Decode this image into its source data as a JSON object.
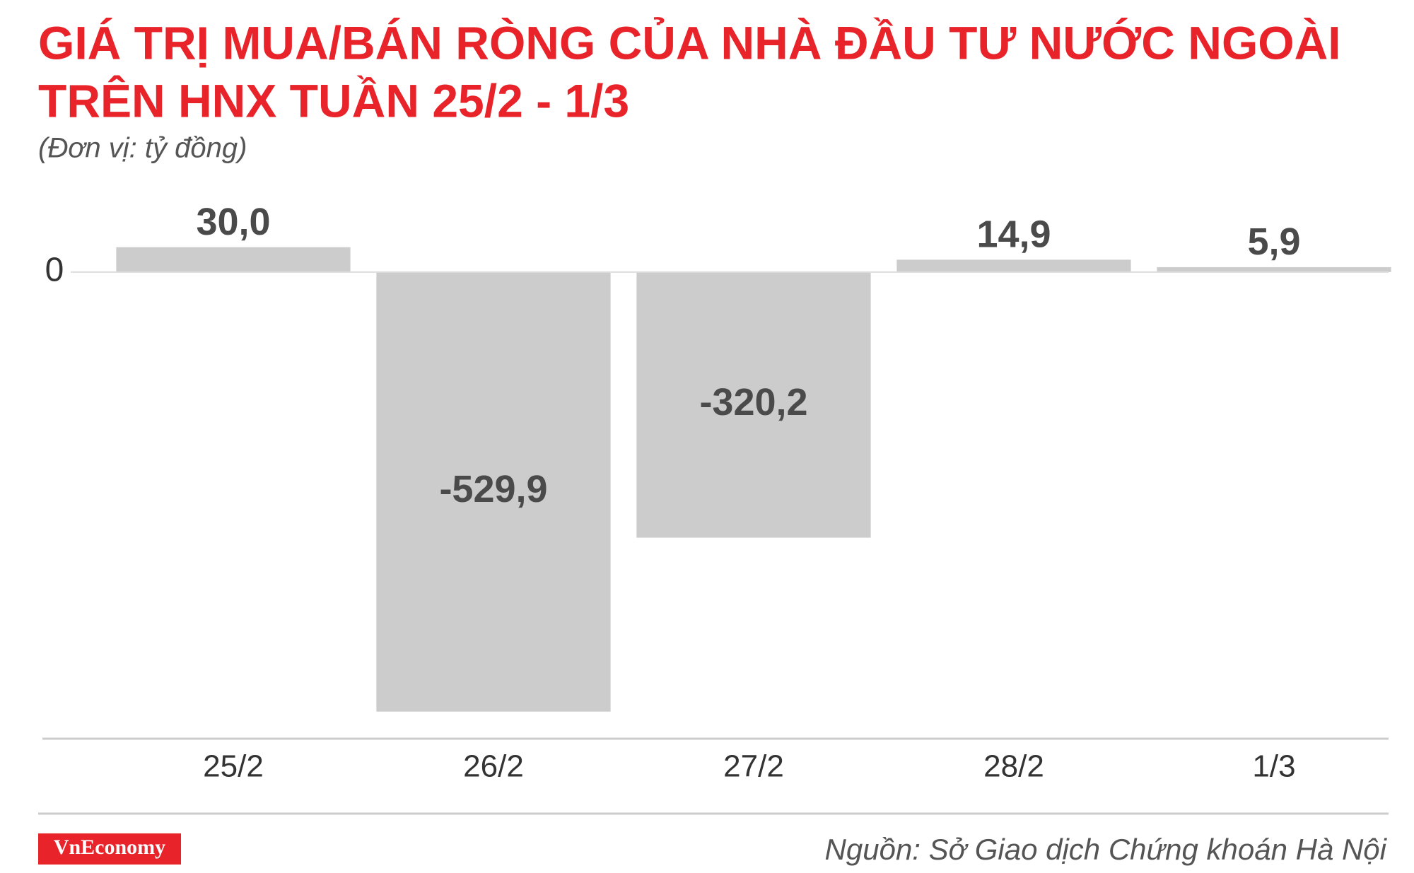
{
  "chart_data": {
    "type": "bar",
    "title": [
      "GIÁ TRỊ MUA/BÁN RÒNG CỦA NHÀ ĐẦU TƯ NƯỚC NGOÀI",
      "TRÊN HNX TUẦN 25/2 - 1/3"
    ],
    "subtitle": "(Đơn vị: tỷ đồng)",
    "categories": [
      "25/2",
      "26/2",
      "27/2",
      "28/2",
      "1/3"
    ],
    "values": [
      30.0,
      -529.9,
      -320.2,
      14.9,
      5.9
    ],
    "value_labels": [
      "30,0",
      "-529,9",
      "-320,2",
      "14,9",
      "5,9"
    ],
    "color": "#cdcccd",
    "ylim": [
      -560,
      80
    ],
    "yticks": [
      0
    ],
    "grid": true,
    "logo": "VnEconomy",
    "source": "Nguồn: Sở Giao dịch Chứng khoán Hà Nội"
  }
}
